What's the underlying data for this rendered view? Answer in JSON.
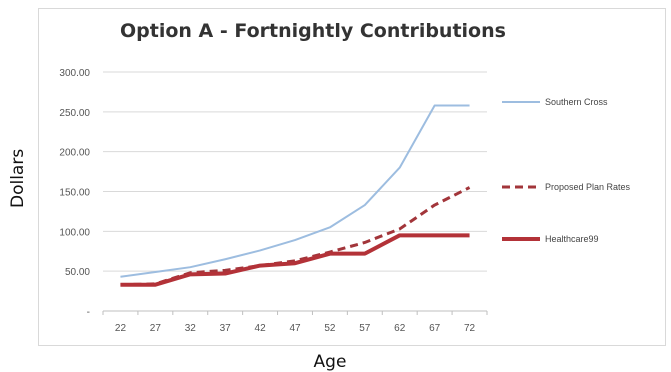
{
  "chart_data": {
    "type": "line",
    "title": "Option A - Fortnightly Contributions",
    "xlabel": "Age",
    "ylabel": "Dollars",
    "x": [
      22,
      27,
      32,
      37,
      42,
      47,
      52,
      57,
      62,
      67,
      72
    ],
    "y_tick_labels": [
      "-",
      "50.00",
      "100.00",
      "150.00",
      "200.00",
      "250.00",
      "300.00"
    ],
    "y_ticks": [
      0,
      50,
      100,
      150,
      200,
      250,
      300
    ],
    "ylim": [
      0,
      300
    ],
    "grid": true,
    "legend_position": "right",
    "series": [
      {
        "name": "Southern Cross",
        "values": [
          43,
          49,
          55,
          65,
          76,
          89,
          105,
          133,
          180,
          258,
          258
        ],
        "color": "#9dbde0",
        "style": "solid"
      },
      {
        "name": "Proposed Plan Rates",
        "values": [
          33,
          34,
          48,
          51,
          57,
          63,
          74,
          86,
          103,
          133,
          155
        ],
        "color": "#a2353a",
        "style": "dashed"
      },
      {
        "name": "Healthcare99",
        "values": [
          33,
          33,
          46,
          47,
          57,
          60,
          72,
          72,
          95,
          95,
          95
        ],
        "color": "#b33238",
        "style": "solid-thick"
      }
    ]
  }
}
